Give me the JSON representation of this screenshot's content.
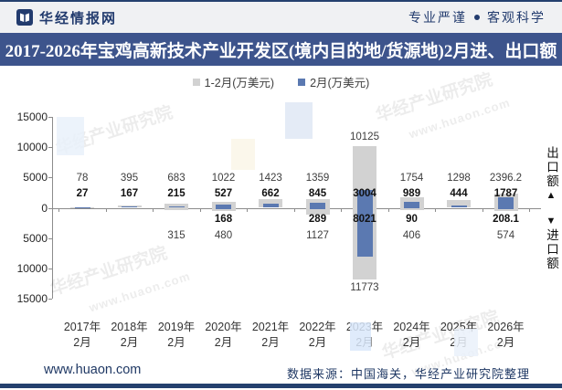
{
  "header": {
    "brand": "华经情报网",
    "slogan_left": "专业严谨",
    "slogan_right": "客观科学"
  },
  "title": "2017-2026年宝鸡高新技术产业开发区(境内目的地/货源地)2月进、出口额",
  "chart_data": {
    "type": "bar",
    "title": "2017-2026年宝鸡高新技术产业开发区(境内目的地/货源地)2月进、出口额",
    "unit": "万美元",
    "legend_position": "top",
    "grid": false,
    "categories": [
      "2017年2月",
      "2018年2月",
      "2019年2月",
      "2020年2月",
      "2021年2月",
      "2022年2月",
      "2023年2月",
      "2024年2月",
      "2025年2月",
      "2026年2月"
    ],
    "series": [
      {
        "name": "1-2月(万美元)",
        "color": "#d2d2d2",
        "export_values": [
          78,
          395,
          683,
          1022,
          1423,
          1359,
          10125,
          1754,
          1298,
          2396.2
        ],
        "import_values": [
          null,
          null,
          315,
          480,
          null,
          1127,
          11773,
          406,
          null,
          574
        ]
      },
      {
        "name": "2月(万美元)",
        "color": "#5b79b1",
        "export_values": [
          27,
          167,
          215,
          527,
          662,
          845,
          3004,
          989,
          444,
          1787
        ],
        "import_values": [
          null,
          null,
          null,
          168,
          null,
          289,
          8021,
          90,
          null,
          208.1
        ]
      }
    ],
    "axis": {
      "yticks_abs": [
        15000,
        10000,
        5000,
        0,
        5000,
        10000,
        15000
      ],
      "ylim": [
        -15000,
        15000
      ],
      "up_direction_label": "出口额",
      "down_direction_label": "进口额",
      "up_arrow": "▲",
      "down_arrow": "▼"
    }
  },
  "footer": {
    "site": "www.huaon.com",
    "source": "数据来源：中国海关，华经产业研究院整理"
  },
  "watermark": {
    "text": "华经产业研究院",
    "url": "www.huaon.com"
  },
  "colors": {
    "title_bar": "#3d548c",
    "brand_navy": "#223b6e",
    "bar_month": "#5b79b1",
    "bar_cumulative": "#d2d2d2",
    "axis": "#8c8c8c"
  }
}
